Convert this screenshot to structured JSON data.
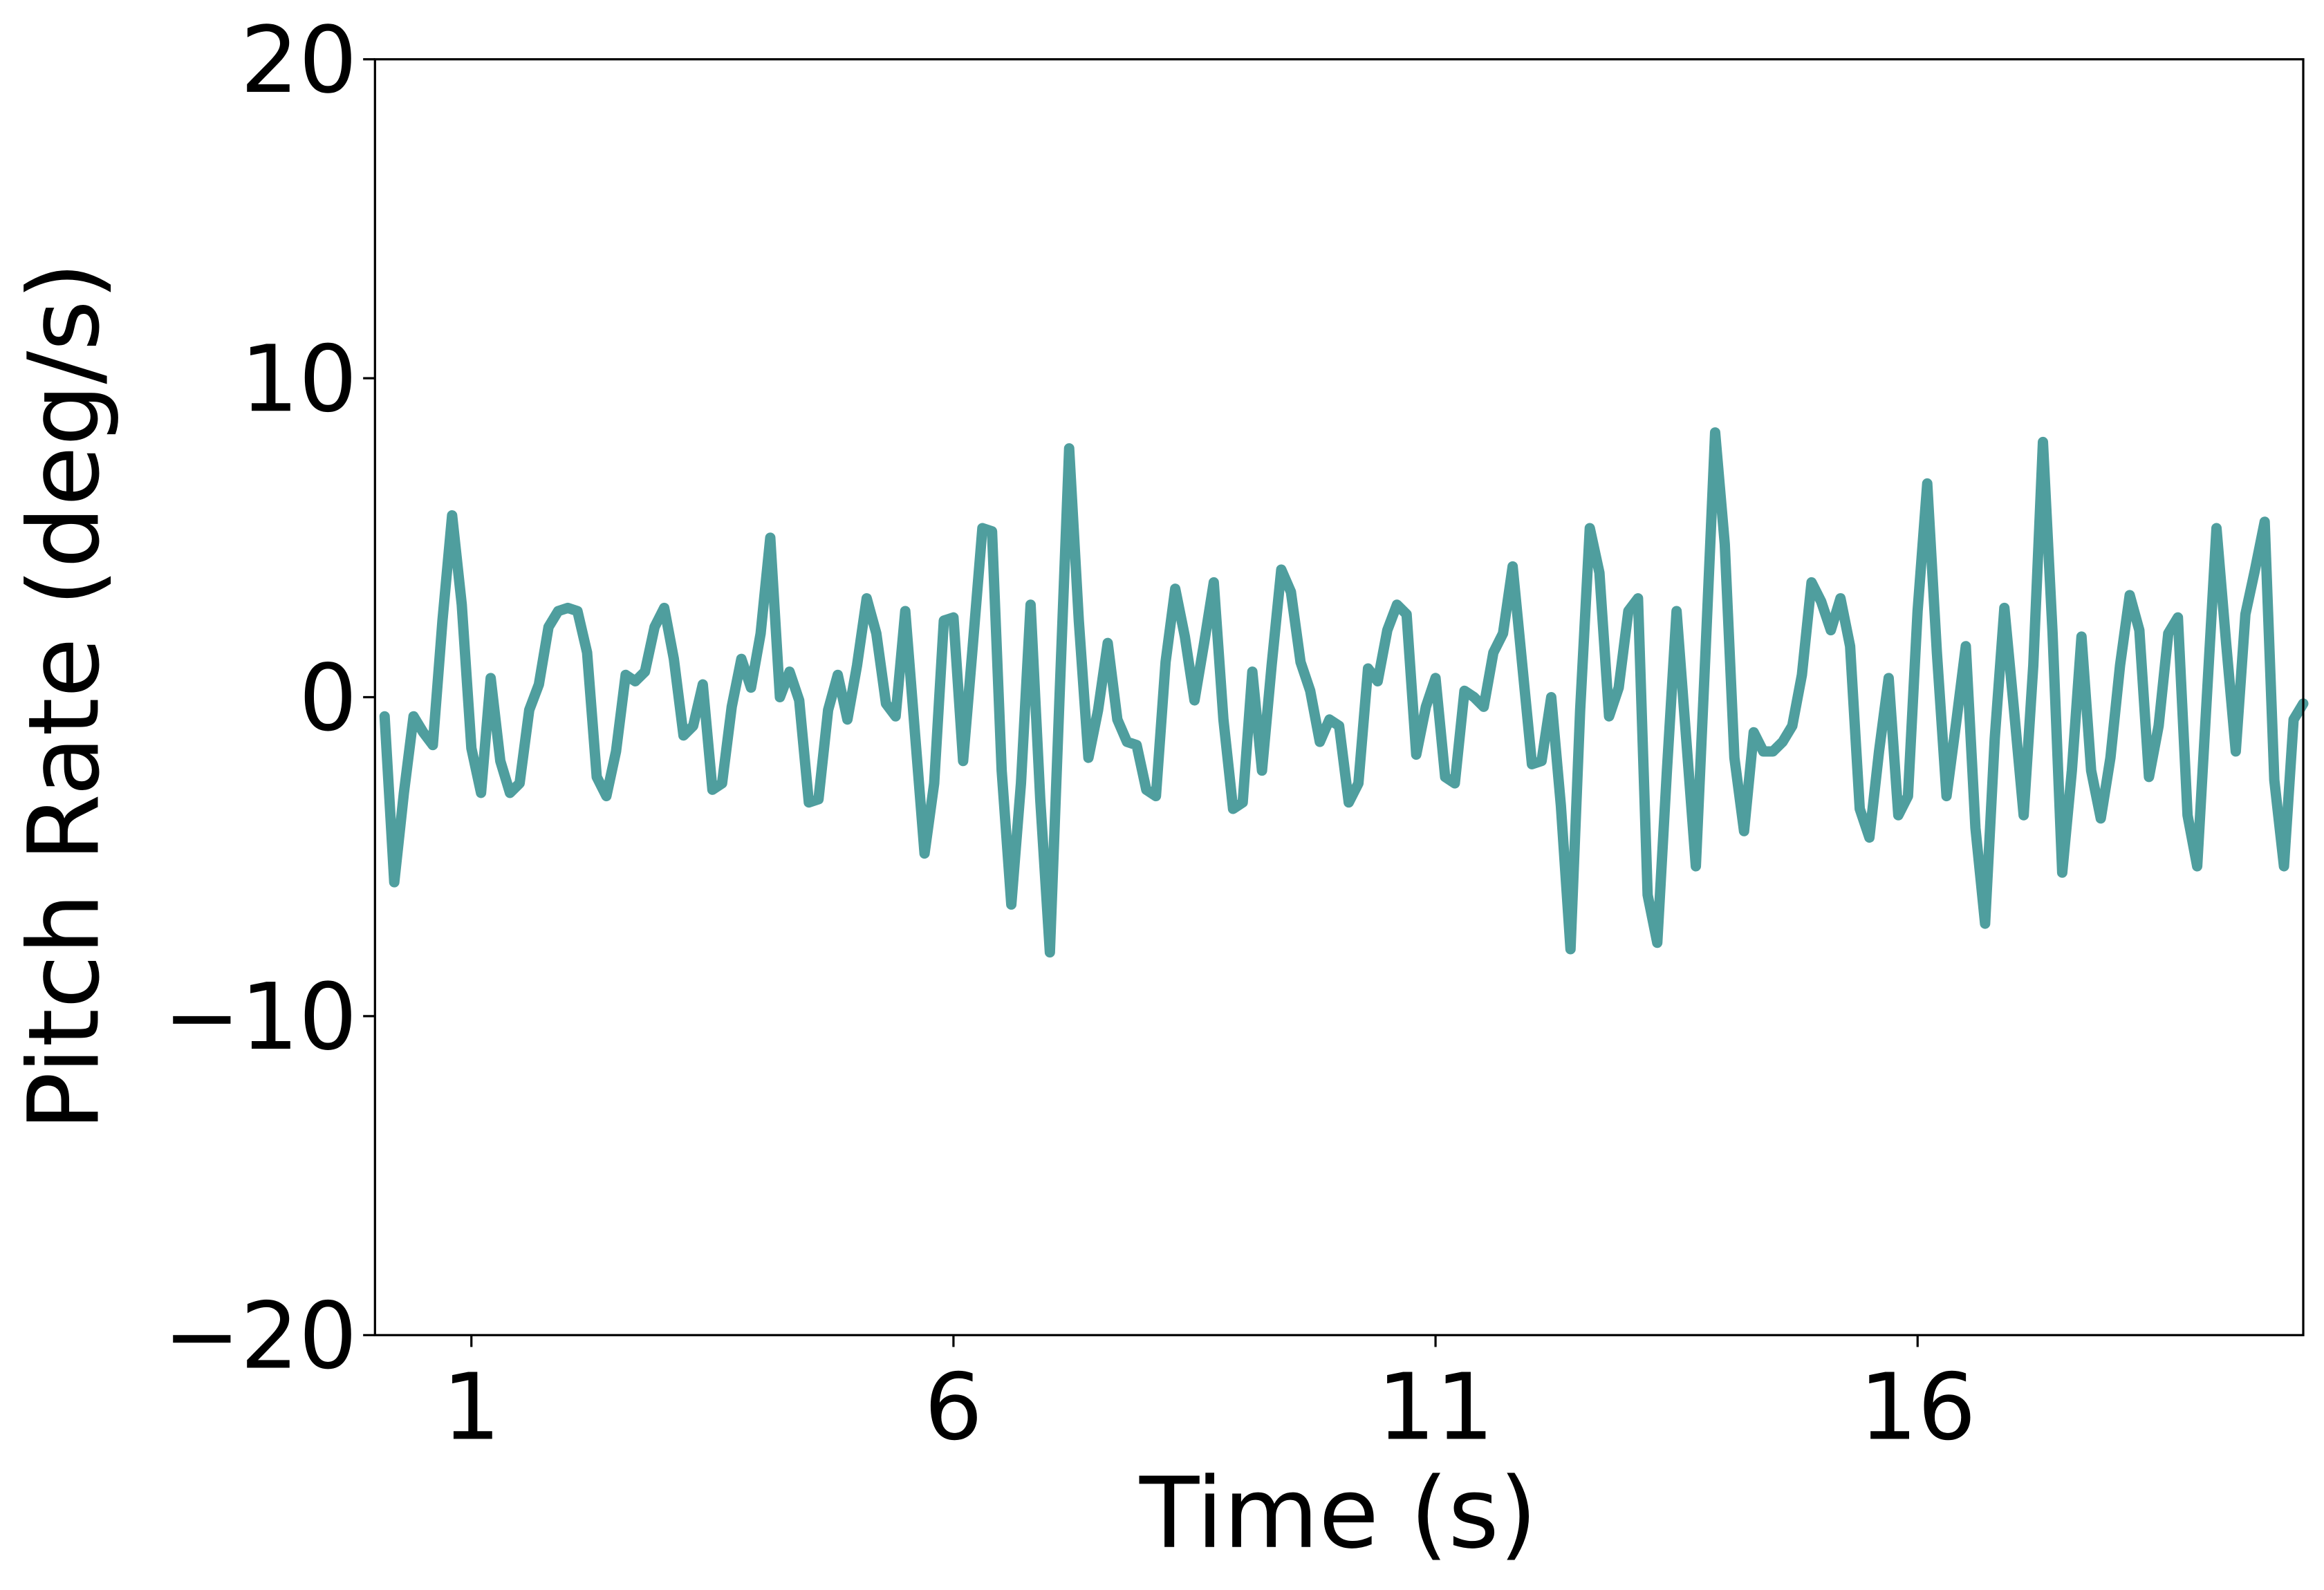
{
  "chart_data": {
    "type": "line",
    "x_label": "Time (s)",
    "y_label": "Pitch Rate (deg/s)",
    "color": "#4f9e9e",
    "x": [
      0.1,
      0.2,
      0.3,
      0.4,
      0.5,
      0.6,
      0.7,
      0.8,
      0.9,
      1.0,
      1.1,
      1.2,
      1.3,
      1.4,
      1.5,
      1.6,
      1.7,
      1.8,
      1.9,
      2.0,
      2.1,
      2.2,
      2.3,
      2.4,
      2.5,
      2.6,
      2.7,
      2.8,
      2.9,
      3.0,
      3.1,
      3.2,
      3.3,
      3.4,
      3.5,
      3.6,
      3.7,
      3.8,
      3.9,
      4.0,
      4.1,
      4.2,
      4.3,
      4.4,
      4.5,
      4.6,
      4.7,
      4.8,
      4.9,
      5.0,
      5.1,
      5.2,
      5.3,
      5.4,
      5.5,
      5.6,
      5.7,
      5.8,
      5.9,
      6.0,
      6.1,
      6.2,
      6.3,
      6.4,
      6.5,
      6.6,
      6.7,
      6.8,
      6.9,
      7.0,
      7.1,
      7.2,
      7.3,
      7.4,
      7.5,
      7.6,
      7.7,
      7.8,
      7.9,
      8.0,
      8.1,
      8.2,
      8.3,
      8.4,
      8.5,
      8.6,
      8.7,
      8.8,
      8.9,
      9.0,
      9.1,
      9.2,
      9.3,
      9.4,
      9.5,
      9.6,
      9.7,
      9.8,
      9.9,
      10.0,
      10.1,
      10.2,
      10.3,
      10.4,
      10.5,
      10.6,
      10.7,
      10.8,
      10.9,
      11.0,
      11.1,
      11.2,
      11.3,
      11.4,
      11.5,
      11.6,
      11.7,
      11.8,
      11.9,
      12.0,
      12.1,
      12.2,
      12.3,
      12.4,
      12.5,
      12.6,
      12.7,
      12.8,
      12.9,
      13.0,
      13.1,
      13.2,
      13.3,
      13.4,
      13.5,
      13.6,
      13.7,
      13.8,
      13.9,
      14.0,
      14.1,
      14.2,
      14.3,
      14.4,
      14.5,
      14.6,
      14.7,
      14.8,
      14.9,
      15.0,
      15.1,
      15.2,
      15.3,
      15.4,
      15.5,
      15.6,
      15.7,
      15.8,
      15.9,
      16.0,
      16.1,
      16.2,
      16.3,
      16.4,
      16.5,
      16.6,
      16.7,
      16.8,
      16.9,
      17.0,
      17.1,
      17.2,
      17.3,
      17.4,
      17.5,
      17.6,
      17.7,
      17.8,
      17.9,
      18.0,
      18.1,
      18.2,
      18.3,
      18.4,
      18.5,
      18.6,
      18.7,
      18.8,
      18.9,
      19.0,
      19.1,
      19.2,
      19.3,
      19.4,
      19.5,
      19.6,
      19.7,
      19.8,
      19.9,
      20.0
    ],
    "values": [
      -0.6,
      -5.8,
      -3,
      -0.6,
      -1.1,
      -1.5,
      2.4,
      5.7,
      2.9,
      -1.6,
      -3,
      0.6,
      -2,
      -3,
      -2.7,
      -0.4,
      0.4,
      2.2,
      2.7,
      2.8,
      2.7,
      1.4,
      -2.5,
      -3.1,
      -1.7,
      0.7,
      0.5,
      0.8,
      2.2,
      2.8,
      1.2,
      -1.2,
      -0.9,
      0.4,
      -2.9,
      -2.7,
      -0.3,
      1.2,
      0.3,
      2,
      5,
      0,
      0.8,
      -0.1,
      -3.3,
      -3.2,
      -0.4,
      0.7,
      -0.7,
      1,
      3.1,
      2,
      -0.2,
      -0.6,
      2.7,
      -1.1,
      -4.9,
      -2.7,
      2.4,
      2.5,
      -2,
      1.6,
      5.3,
      5.2,
      -2.3,
      -6.5,
      -2.7,
      2.9,
      -3.2,
      -8,
      0,
      7.8,
      2.4,
      -1.9,
      -0.4,
      1.7,
      -0.7,
      -1.4,
      -1.5,
      -2.9,
      -3.1,
      1.1,
      3.4,
      1.9,
      -0.1,
      1.7,
      3.6,
      -0.7,
      -3.5,
      -3.3,
      0.8,
      -2.3,
      1,
      4,
      3.3,
      1.1,
      0.2,
      -1.4,
      -0.7,
      -0.9,
      -3.3,
      -2.7,
      0.9,
      0.5,
      2.1,
      2.9,
      2.6,
      -1.8,
      -0.3,
      0.6,
      -2.5,
      -2.7,
      0.2,
      0,
      -0.3,
      1.4,
      2,
      4.1,
      1,
      -2.1,
      -2,
      0,
      -3.4,
      -7.9,
      -0.4,
      5.3,
      3.9,
      -0.6,
      0.3,
      2.7,
      3.1,
      -6.2,
      -7.7,
      -2.3,
      2.7,
      -1.3,
      -5.3,
      1.4,
      8.3,
      4.8,
      -1.9,
      -4.2,
      -1.1,
      -1.7,
      -1.7,
      -1.4,
      -0.9,
      0.7,
      3.6,
      3,
      2.1,
      3.1,
      1.6,
      -3.5,
      -4.4,
      -1.7,
      0.6,
      -3.7,
      -3.1,
      2.7,
      6.7,
      1.4,
      -3.1,
      -0.8,
      1.6,
      -4.1,
      -7.1,
      -1.3,
      2.8,
      -0.4,
      -3.7,
      1,
      8,
      2,
      -5.5,
      -2.3,
      1.9,
      -2.3,
      -3.8,
      -1.9,
      1,
      3.2,
      2.1,
      -2.5,
      -0.9,
      2,
      2.5,
      -3.7,
      -5.3,
      0,
      5.3,
      1.7,
      -1.7,
      2.6,
      4,
      5.5,
      -2.6,
      -5.3,
      -0.7,
      -0.2
    ],
    "xlim": [
      0,
      20
    ],
    "ylim": [
      -20,
      20
    ],
    "xticks": [
      1,
      6,
      11,
      16
    ],
    "yticks": [
      {
        "value": -20,
        "label": "−20"
      },
      {
        "value": -10,
        "label": "−10"
      },
      0,
      10,
      20
    ]
  }
}
